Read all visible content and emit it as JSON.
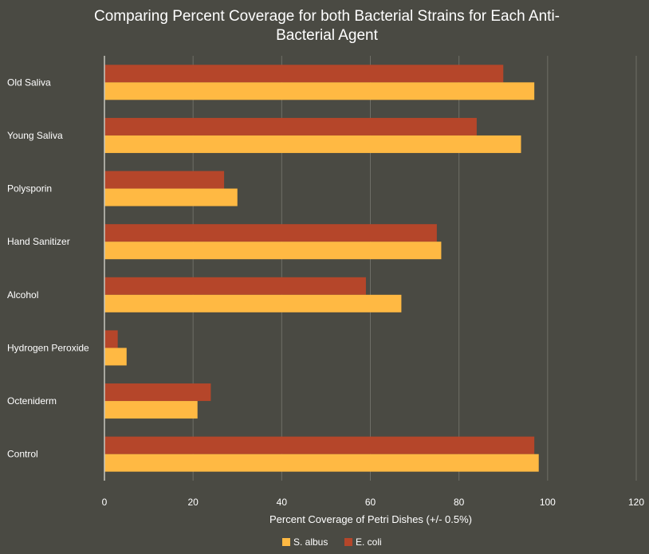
{
  "chart_data": {
    "type": "bar",
    "orientation": "horizontal",
    "title_lines": [
      "Comparing Percent Coverage for both Bacterial Strains for Each Anti-",
      "Bacterial Agent"
    ],
    "xlabel": "Percent Coverage of Petri Dishes (+/- 0.5%)",
    "ylabel": "",
    "xlim": [
      0,
      120
    ],
    "xticks": [
      "0",
      "20",
      "40",
      "60",
      "80",
      "100",
      "120"
    ],
    "grid": true,
    "legend_position": "bottom",
    "categories": [
      "Old Saliva",
      "Young Saliva",
      "Polysporin",
      "Hand Sanitizer",
      "Alcohol",
      "Hydrogen Peroxide",
      "Octeniderm",
      "Control"
    ],
    "series": [
      {
        "name": "S. albus",
        "color": "#ffb943",
        "values": [
          97,
          94,
          30,
          76,
          67,
          5,
          21,
          98
        ]
      },
      {
        "name": "E. coli",
        "color": "#b5462a",
        "values": [
          90,
          84,
          27,
          75,
          59,
          3,
          24,
          97
        ]
      }
    ]
  },
  "colors": {
    "background": "#4a4a43",
    "gridline": "#6e6e66",
    "axis": "#c8c8c0",
    "text": "#ffffff"
  }
}
